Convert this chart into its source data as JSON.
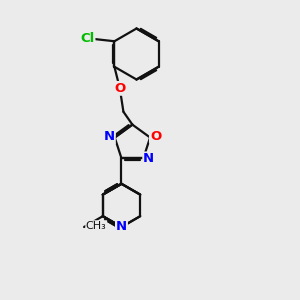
{
  "bg_color": "#ebebeb",
  "bond_color": "#111111",
  "bond_lw": 1.6,
  "dbo": 0.06,
  "atom_colors": {
    "N": "#0000ff",
    "O": "#ff0000",
    "Cl": "#00bb00",
    "C": "#111111"
  },
  "fs": 9.5,
  "fs_me": 8.0,
  "xlim": [
    0,
    10
  ],
  "ylim": [
    0,
    10
  ]
}
